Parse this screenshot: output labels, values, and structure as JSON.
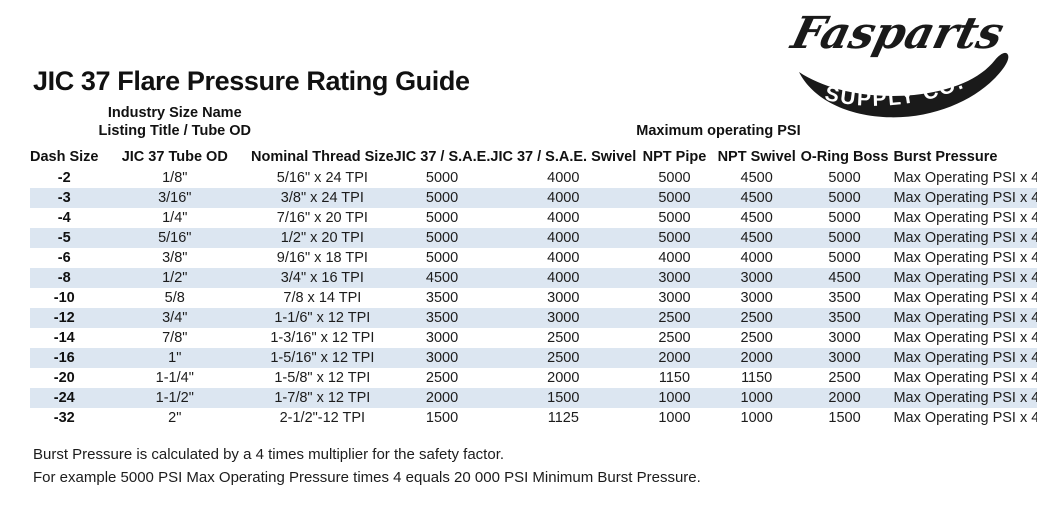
{
  "logo": {
    "name": "Fasparts",
    "subtitle": "Supply co."
  },
  "page_title": "JIC 37 Flare Pressure Rating Guide",
  "table": {
    "band_color": "#dce6f1",
    "industry_header_line1": "Industry Size Name",
    "industry_header_line2": "Listing Title / Tube OD",
    "max_psi_header": "Maximum operating PSI",
    "columns": [
      "Dash Size",
      "JIC 37 Tube OD",
      "Nominal Thread Size",
      "JIC 37 / S.A.E.",
      "JIC 37 / S.A.E. Swivel",
      "NPT Pipe",
      "NPT Swivel",
      "O-Ring Boss",
      "Burst Pressure"
    ],
    "rows": [
      [
        "-2",
        "1/8\"",
        "5/16\" x 24 TPI",
        "5000",
        "4000",
        "5000",
        "4500",
        "5000",
        "Max Operating PSI x 4"
      ],
      [
        "-3",
        "3/16\"",
        "3/8\" x 24 TPI",
        "5000",
        "4000",
        "5000",
        "4500",
        "5000",
        "Max Operating PSI x 4"
      ],
      [
        "-4",
        "1/4\"",
        "7/16\" x 20 TPI",
        "5000",
        "4000",
        "5000",
        "4500",
        "5000",
        "Max Operating PSI x 4"
      ],
      [
        "-5",
        "5/16\"",
        "1/2\" x 20 TPI",
        "5000",
        "4000",
        "5000",
        "4500",
        "5000",
        "Max Operating PSI x 4"
      ],
      [
        "-6",
        "3/8\"",
        "9/16\" x 18 TPI",
        "5000",
        "4000",
        "4000",
        "4000",
        "5000",
        "Max Operating PSI x 4"
      ],
      [
        "-8",
        "1/2\"",
        "3/4\" x 16 TPI",
        "4500",
        "4000",
        "3000",
        "3000",
        "4500",
        "Max Operating PSI x 4"
      ],
      [
        "-10",
        "5/8",
        "7/8 x 14 TPI",
        "3500",
        "3000",
        "3000",
        "3000",
        "3500",
        "Max Operating PSI x 4"
      ],
      [
        "-12",
        "3/4\"",
        "1-1/6\" x 12 TPI",
        "3500",
        "3000",
        "2500",
        "2500",
        "3500",
        "Max Operating PSI x 4"
      ],
      [
        "-14",
        "7/8\"",
        "1-3/16\" x 12 TPI",
        "3000",
        "2500",
        "2500",
        "2500",
        "3000",
        "Max Operating PSI x 4"
      ],
      [
        "-16",
        "1\"",
        "1-5/16\" x 12 TPI",
        "3000",
        "2500",
        "2000",
        "2000",
        "3000",
        "Max Operating PSI x 4"
      ],
      [
        "-20",
        "1-1/4\"",
        "1-5/8\" x 12 TPI",
        "2500",
        "2000",
        "1150",
        "1150",
        "2500",
        "Max Operating PSI x 4"
      ],
      [
        "-24",
        "1-1/2\"",
        "1-7/8\" x 12 TPI",
        "2000",
        "1500",
        "1000",
        "1000",
        "2000",
        "Max Operating PSI x 4"
      ],
      [
        "-32",
        "2\"",
        "2-1/2\"-12 TPI",
        "1500",
        "1125",
        "1000",
        "1000",
        "1500",
        "Max Operating PSI x 4"
      ]
    ]
  },
  "footer": {
    "line1": "Burst Pressure is calculated by a 4 times multiplier for the safety factor.",
    "line2": "For example 5000 PSI Max Operating Pressure times 4 equals 20 000 PSI Minimum Burst Pressure."
  }
}
